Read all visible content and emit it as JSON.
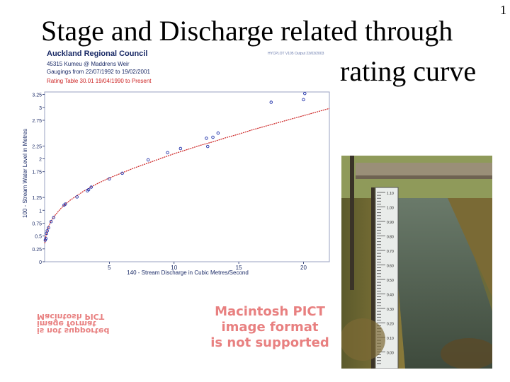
{
  "slide": {
    "title_line1": "Stage and Discharge related through",
    "title_line2": "rating curve",
    "slide_number": "1"
  },
  "chart_header": {
    "organization": "Auckland Regional Council",
    "site": "45315    Kumeu @ Maddrens Weir",
    "gaugings": "Gaugings from 22/07/1992 to 19/02/2001",
    "rating_table": "Rating Table  30.01  19/04/1990 to Present",
    "stamp": "HYCPLOT V105 Output 23/03/2003"
  },
  "chart_data": {
    "type": "scatter",
    "xlabel": "140 - Stream Discharge in Cubic Metres/Second",
    "ylabel": "100 - Stream Water Level in Metres",
    "xlim": [
      0,
      22
    ],
    "ylim": [
      0,
      3.3
    ],
    "x_ticks": [
      "5",
      "10",
      "15",
      "20"
    ],
    "y_ticks": [
      "0",
      "0.25",
      "0.5",
      "0.75",
      "1",
      "1.25",
      "1.75",
      "2",
      "2.25",
      "2.75",
      "3",
      "3.25"
    ],
    "x_tick_values": [
      5,
      10,
      15,
      20
    ],
    "y_tick_values": [
      0,
      0.25,
      0.5,
      0.75,
      1,
      1.25,
      1.75,
      2,
      2.25,
      2.75,
      3,
      3.25
    ],
    "rating_curve": {
      "color": "#cc2222",
      "x": [
        0.02,
        0.05,
        0.1,
        0.2,
        0.3,
        0.5,
        0.8,
        1.2,
        1.6,
        2,
        3,
        4,
        5,
        6,
        7,
        8,
        9,
        10,
        11,
        12,
        13,
        14,
        15,
        16,
        17,
        18,
        19,
        20,
        21,
        22
      ],
      "y": [
        0.36,
        0.43,
        0.5,
        0.6,
        0.68,
        0.79,
        0.9,
        1.02,
        1.12,
        1.2,
        1.37,
        1.51,
        1.63,
        1.73,
        1.83,
        1.92,
        2.01,
        2.1,
        2.18,
        2.26,
        2.33,
        2.41,
        2.48,
        2.56,
        2.63,
        2.7,
        2.77,
        2.84,
        2.91,
        2.98
      ]
    },
    "gaugings": {
      "color": "#2233aa",
      "x": [
        0.05,
        0.1,
        0.15,
        0.2,
        0.3,
        0.5,
        0.7,
        1.5,
        1.6,
        2.5,
        3.3,
        3.4,
        3.6,
        5,
        6,
        8,
        9.5,
        10.5,
        12.5,
        12.6,
        13,
        13.4,
        17.5,
        20,
        20.1
      ],
      "y": [
        0.42,
        0.45,
        0.55,
        0.6,
        0.66,
        0.78,
        0.86,
        1.1,
        1.12,
        1.26,
        1.38,
        1.4,
        1.45,
        1.61,
        1.72,
        1.98,
        2.12,
        2.2,
        2.4,
        2.24,
        2.42,
        2.5,
        3.1,
        3.15,
        3.27
      ]
    }
  },
  "pict_placeholder": {
    "line1": "Macintosh PICT",
    "line2": "image format",
    "line3": "is not supported"
  },
  "pict_flipped": {
    "line1": "Macintosh PICT",
    "line2": "image format",
    "line3": "is not supported"
  },
  "photo": {
    "staff_gauge_labels": [
      "1.10",
      "1.00",
      "0.90",
      "0.80",
      "0.70",
      "0.60",
      "0.50",
      "0.40",
      "0.30",
      "0.20",
      "0.10",
      "0.00"
    ]
  }
}
